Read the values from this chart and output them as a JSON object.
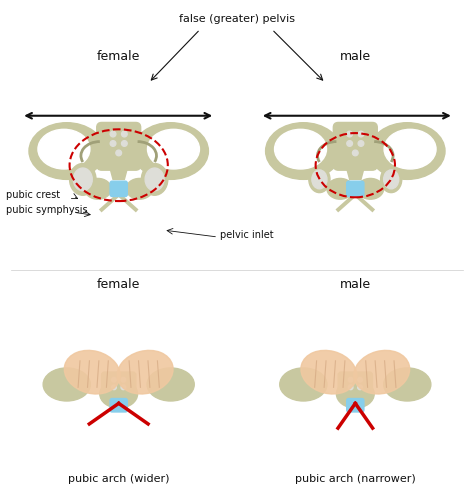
{
  "bg_color": "#ffffff",
  "bone_color": "#c8c8a0",
  "bone_light": "#deded8",
  "bone_dark": "#a0a078",
  "blue_color": "#87CEEB",
  "red_color": "#cc0000",
  "arrow_color": "#111111",
  "skin_color": "#f0c8a0",
  "skin_dark": "#d4a882",
  "labels": {
    "female_top": "female",
    "male_top": "male",
    "false_pelvis": "false (greater) pelvis",
    "pubic_crest": "pubic crest",
    "pubic_symphysis": "pubic symphysis",
    "pelvic_inlet": "pelvic inlet",
    "female_bottom": "female",
    "male_bottom": "male",
    "pubic_arch_wider": "pubic arch (wider)",
    "pubic_arch_narrower": "pubic arch (narrower)"
  },
  "font_size": 8,
  "figsize": [
    4.74,
    4.92
  ],
  "dpi": 100
}
